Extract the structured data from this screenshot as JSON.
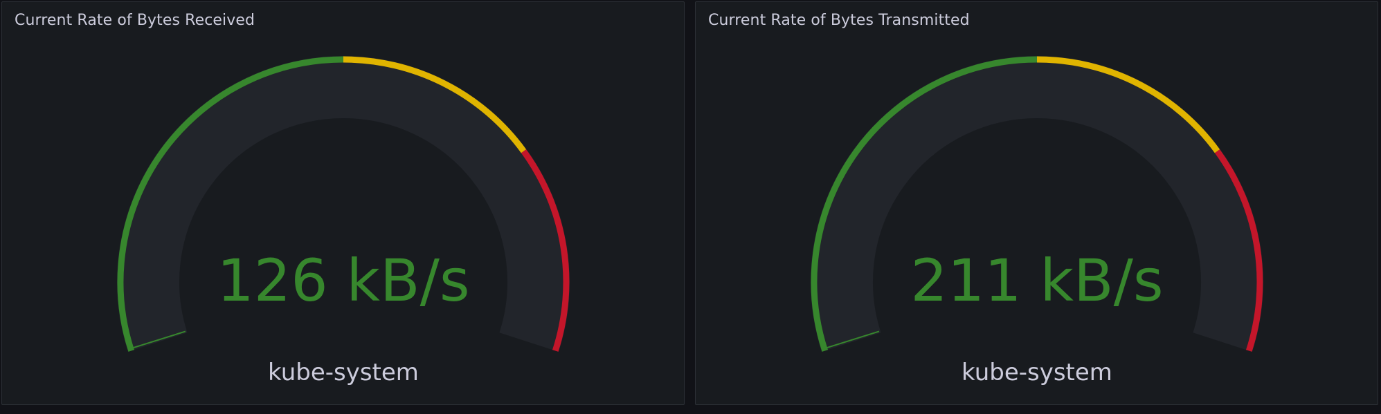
{
  "colors": {
    "background": "#111217",
    "panel_bg": "#181b1f",
    "panel_border": "#2c3036",
    "gauge_track": "#22252b",
    "threshold_green": "#37872d",
    "threshold_yellow": "#e0b400",
    "threshold_red": "#c4162a",
    "value_color": "#37872d",
    "text": "#ccccdc"
  },
  "gauge_config": {
    "thresholds": [
      {
        "color": "green",
        "fraction": 0.5
      },
      {
        "color": "yellow",
        "fraction": 0.25
      },
      {
        "color": "red",
        "fraction": 0.25
      }
    ]
  },
  "panels": [
    {
      "title": "Current Rate of Bytes Received",
      "value_text": "126 kB/s",
      "legend": "kube-system",
      "fill_fraction": 0.0
    },
    {
      "title": "Current Rate of Bytes Transmitted",
      "value_text": "211 kB/s",
      "legend": "kube-system",
      "fill_fraction": 0.0
    }
  ]
}
